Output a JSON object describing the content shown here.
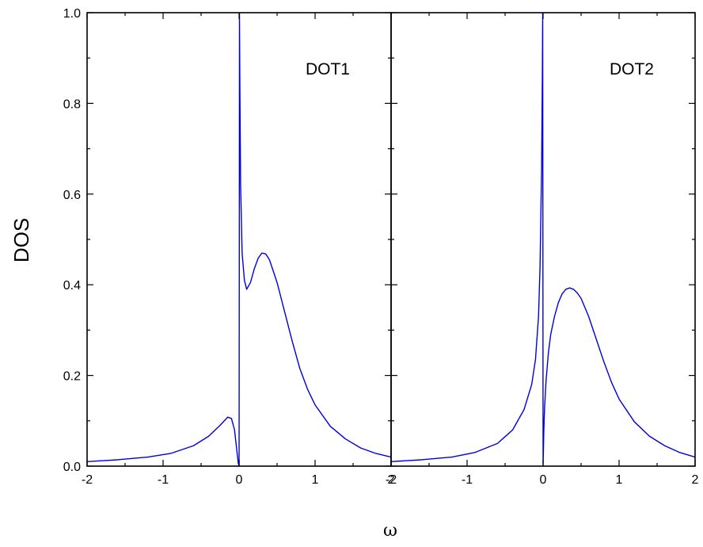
{
  "chart_data": {
    "type": "line",
    "ylabel": "DOS",
    "xlabel": "ω",
    "ylim": [
      0,
      1
    ],
    "y_ticks": [
      "0.0",
      "0.2",
      "0.4",
      "0.6",
      "0.8",
      "1.0"
    ],
    "y_tick_values": [
      0,
      0.2,
      0.4,
      0.6,
      0.8,
      1.0
    ],
    "colors": {
      "series": "#0000dd",
      "axes": "#000000"
    },
    "grid": false,
    "panels": [
      {
        "label": "DOT1",
        "xlim": [
          -2,
          2
        ],
        "x_ticks": [
          "-2",
          "-1",
          "0",
          "1",
          "2"
        ],
        "x_tick_values": [
          -2,
          -1,
          0,
          1,
          2
        ],
        "series": [
          {
            "x": [
              -2.0,
              -1.6,
              -1.2,
              -0.9,
              -0.6,
              -0.4,
              -0.25,
              -0.15,
              -0.1,
              -0.06,
              -0.04,
              -0.02,
              -0.01,
              0.0,
              0.003,
              0.005,
              0.01,
              0.02,
              0.04,
              0.07,
              0.1,
              0.15,
              0.2,
              0.25,
              0.3,
              0.35,
              0.4,
              0.5,
              0.6,
              0.7,
              0.8,
              0.9,
              1.0,
              1.2,
              1.4,
              1.6,
              1.8,
              2.0
            ],
            "y": [
              0.01,
              0.014,
              0.02,
              0.028,
              0.045,
              0.066,
              0.09,
              0.108,
              0.105,
              0.08,
              0.05,
              0.02,
              0.006,
              0.0,
              0.5,
              1.0,
              0.85,
              0.62,
              0.47,
              0.41,
              0.39,
              0.405,
              0.435,
              0.458,
              0.47,
              0.468,
              0.455,
              0.405,
              0.34,
              0.275,
              0.215,
              0.17,
              0.135,
              0.088,
              0.06,
              0.04,
              0.028,
              0.02
            ]
          }
        ]
      },
      {
        "label": "DOT2",
        "xlim": [
          -2,
          2
        ],
        "x_ticks": [
          "-2",
          "-1",
          "0",
          "1",
          "2"
        ],
        "x_tick_values": [
          -2,
          -1,
          0,
          1,
          2
        ],
        "series": [
          {
            "x": [
              -2.0,
              -1.6,
              -1.2,
              -0.9,
              -0.6,
              -0.4,
              -0.25,
              -0.15,
              -0.1,
              -0.06,
              -0.04,
              -0.02,
              -0.01,
              -0.005,
              0.0,
              0.005,
              0.01,
              0.02,
              0.04,
              0.07,
              0.1,
              0.15,
              0.2,
              0.25,
              0.3,
              0.35,
              0.4,
              0.45,
              0.5,
              0.6,
              0.7,
              0.8,
              0.9,
              1.0,
              1.2,
              1.4,
              1.6,
              1.8,
              2.0
            ],
            "y": [
              0.01,
              0.014,
              0.02,
              0.03,
              0.05,
              0.08,
              0.125,
              0.18,
              0.235,
              0.33,
              0.44,
              0.65,
              0.85,
              1.0,
              0.0,
              0.04,
              0.08,
              0.13,
              0.19,
              0.25,
              0.29,
              0.33,
              0.36,
              0.38,
              0.39,
              0.393,
              0.39,
              0.382,
              0.37,
              0.33,
              0.28,
              0.23,
              0.185,
              0.148,
              0.098,
              0.066,
              0.045,
              0.03,
              0.02
            ]
          }
        ]
      }
    ]
  }
}
